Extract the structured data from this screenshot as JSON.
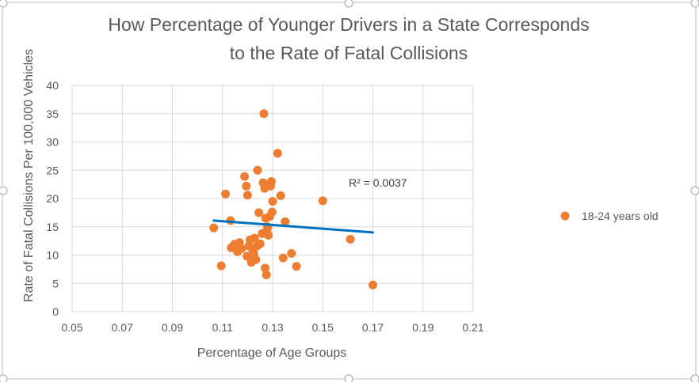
{
  "chart_data": {
    "type": "scatter",
    "title_line1": "How Percentage of Younger Drivers in a State Corresponds",
    "title_line2": "to the Rate of Fatal Collisions",
    "xlabel": "Percentage of Age Groups",
    "ylabel": "Rate of Fatal Collisions Per 100,000 Vehicles",
    "xlim": [
      0.05,
      0.21
    ],
    "ylim": [
      0,
      40
    ],
    "x_ticks": [
      "0.05",
      "0.07",
      "0.09",
      "0.11",
      "0.13",
      "0.15",
      "0.17",
      "0.19",
      "0.21"
    ],
    "y_ticks": [
      "0",
      "5",
      "10",
      "15",
      "20",
      "25",
      "30",
      "35",
      "40"
    ],
    "grid": true,
    "legend_position": "right",
    "series": [
      {
        "name": "18-24 years old",
        "color": "#ED7D31",
        "points": [
          [
            0.1065,
            14.8
          ],
          [
            0.1095,
            8.1
          ],
          [
            0.1112,
            20.8
          ],
          [
            0.1132,
            16.1
          ],
          [
            0.1135,
            11.3
          ],
          [
            0.1148,
            11.9
          ],
          [
            0.116,
            10.6
          ],
          [
            0.1168,
            12.2
          ],
          [
            0.1175,
            11.1
          ],
          [
            0.1188,
            23.9
          ],
          [
            0.1195,
            22.2
          ],
          [
            0.1198,
            9.8
          ],
          [
            0.12,
            20.6
          ],
          [
            0.1205,
            11.6
          ],
          [
            0.121,
            12.7
          ],
          [
            0.1215,
            8.7
          ],
          [
            0.122,
            11.0
          ],
          [
            0.1225,
            10.2
          ],
          [
            0.1228,
            13.0
          ],
          [
            0.1233,
            9.2
          ],
          [
            0.1238,
            11.6
          ],
          [
            0.124,
            25.0
          ],
          [
            0.1245,
            17.5
          ],
          [
            0.125,
            12.0
          ],
          [
            0.1258,
            13.8
          ],
          [
            0.1262,
            22.8
          ],
          [
            0.1265,
            35.0
          ],
          [
            0.1268,
            21.8
          ],
          [
            0.127,
            7.7
          ],
          [
            0.1272,
            16.5
          ],
          [
            0.1275,
            6.5
          ],
          [
            0.1278,
            14.5
          ],
          [
            0.128,
            15.0
          ],
          [
            0.1283,
            13.5
          ],
          [
            0.1288,
            16.8
          ],
          [
            0.1292,
            22.2
          ],
          [
            0.1295,
            23.0
          ],
          [
            0.1298,
            17.6
          ],
          [
            0.13,
            19.5
          ],
          [
            0.132,
            28.0
          ],
          [
            0.1332,
            20.5
          ],
          [
            0.1342,
            9.5
          ],
          [
            0.135,
            15.9
          ],
          [
            0.1375,
            10.3
          ],
          [
            0.1395,
            8.0
          ],
          [
            0.15,
            19.6
          ],
          [
            0.161,
            12.8
          ],
          [
            0.17,
            4.7
          ]
        ]
      }
    ],
    "trendline": {
      "x": [
        0.1065,
        0.17
      ],
      "y": [
        16.1,
        14.0
      ],
      "color": "#0070C0"
    },
    "r_squared_label": "R² = 0.0037"
  }
}
